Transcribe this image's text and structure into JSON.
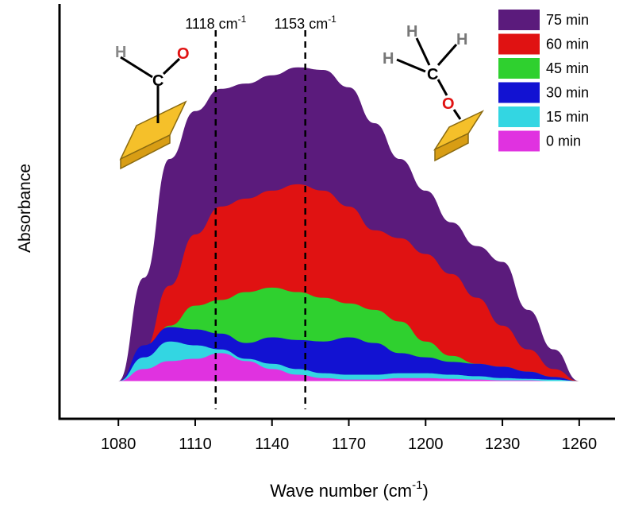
{
  "chart_data": {
    "type": "area",
    "y_label": "Absorbance",
    "x_label": [
      "Wave number (cm",
      "-1",
      ")"
    ],
    "x": [
      1080,
      1090,
      1100,
      1110,
      1120,
      1130,
      1140,
      1150,
      1160,
      1170,
      1180,
      1190,
      1200,
      1210,
      1220,
      1230,
      1240,
      1250,
      1260
    ],
    "xlim": [
      1057,
      1274
    ],
    "xticks": [
      1080,
      1110,
      1140,
      1170,
      1200,
      1230,
      1260
    ],
    "ylim": [
      -0.1,
      1
    ],
    "legend": "upper right",
    "series": [
      {
        "name": "75 min",
        "color": "#5b1b7c",
        "values": [
          0,
          0.274,
          0.589,
          0.716,
          0.775,
          0.789,
          0.811,
          0.832,
          0.825,
          0.779,
          0.684,
          0.589,
          0.505,
          0.421,
          0.358,
          0.316,
          0.189,
          0.084,
          0
        ]
      },
      {
        "name": "60 min",
        "color": "#e01212",
        "values": [
          0,
          0.084,
          0.253,
          0.389,
          0.463,
          0.484,
          0.505,
          0.522,
          0.505,
          0.463,
          0.4,
          0.379,
          0.337,
          0.284,
          0.221,
          0.147,
          0.084,
          0.032,
          0
        ]
      },
      {
        "name": "45 min",
        "color": "#2fd02f",
        "values": [
          0,
          0.053,
          0.147,
          0.2,
          0.215,
          0.236,
          0.248,
          0.236,
          0.221,
          0.206,
          0.189,
          0.158,
          0.105,
          0.067,
          0.046,
          0.038,
          0.025,
          0.011,
          0
        ]
      },
      {
        "name": "30 min",
        "color": "#1212d2",
        "values": [
          0,
          0.095,
          0.143,
          0.137,
          0.126,
          0.101,
          0.116,
          0.109,
          0.105,
          0.116,
          0.101,
          0.074,
          0.063,
          0.051,
          0.046,
          0.038,
          0.025,
          0.011,
          0
        ]
      },
      {
        "name": "15 min",
        "color": "#33d6e2",
        "values": [
          0,
          0.063,
          0.105,
          0.095,
          0.084,
          0.059,
          0.046,
          0.032,
          0.021,
          0.017,
          0.017,
          0.021,
          0.021,
          0.017,
          0.013,
          0.008,
          0.006,
          0.004,
          0
        ]
      },
      {
        "name": "0 min",
        "color": "#e032e0",
        "values": [
          0,
          0.032,
          0.053,
          0.059,
          0.074,
          0.053,
          0.032,
          0.017,
          0.008,
          0.004,
          0.004,
          0.008,
          0.008,
          0.006,
          0.004,
          0.002,
          0.002,
          0,
          0
        ]
      }
    ],
    "annotations": [
      {
        "x": 1118,
        "label": "1118 cm",
        "sup": "-1"
      },
      {
        "x": 1153,
        "label": "1153 cm",
        "sup": "-1"
      }
    ],
    "molecules": [
      {
        "atoms": [
          "H",
          "C",
          "O"
        ]
      },
      {
        "atoms": [
          "H",
          "H",
          "H",
          "C",
          "O"
        ]
      }
    ]
  }
}
